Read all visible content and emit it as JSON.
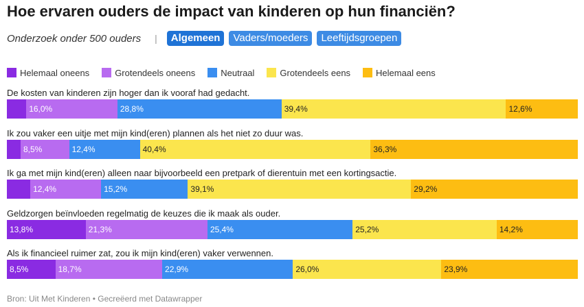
{
  "title": "Hoe ervaren ouders de impact van kinderen op hun financiën?",
  "subtitle": "Onderzoek onder 500 ouders",
  "separator": "|",
  "tabs": [
    {
      "label": "Algemeen",
      "active": true
    },
    {
      "label": "Vaders/moeders",
      "active": false
    },
    {
      "label": "Leeftijdsgroepen",
      "active": false
    }
  ],
  "footer": "Bron: Uit Met Kinderen • Gecreëerd met Datawrapper",
  "chart_data": {
    "type": "bar",
    "orientation": "horizontal",
    "stacked": true,
    "percentages": true,
    "xlim": [
      0,
      100
    ],
    "legend_position": "top",
    "categories": [
      "De kosten van kinderen zijn hoger dan ik vooraf had gedacht.",
      "Ik zou vaker een uitje met mijn kind(eren) plannen als het niet zo duur was.",
      "Ik ga met mijn kind(eren) alleen naar bijvoorbeeld een pretpark of dierentuin met een kortingsactie.",
      "Geldzorgen beïnvloeden regelmatig de keuzes die ik maak als ouder.",
      "Als ik financieel ruimer zat, zou ik mijn kind(eren) vaker verwennen."
    ],
    "series": [
      {
        "name": "Helemaal oneens",
        "color": "#8a2be2",
        "label_color": "#ffffff",
        "values": [
          3.4,
          2.4,
          4.1,
          13.8,
          8.5
        ],
        "labels": [
          "",
          "",
          "",
          "13,8%",
          "8,5%"
        ]
      },
      {
        "name": "Grotendeels oneens",
        "color": "#b86bf0",
        "label_color": "#ffffff",
        "values": [
          16.0,
          8.5,
          12.4,
          21.3,
          18.7
        ],
        "labels": [
          "16,0%",
          "8,5%",
          "12,4%",
          "21,3%",
          "18,7%"
        ]
      },
      {
        "name": "Neutraal",
        "color": "#3a8ef0",
        "label_color": "#ffffff",
        "values": [
          28.8,
          12.4,
          15.2,
          25.4,
          22.9
        ],
        "labels": [
          "28,8%",
          "12,4%",
          "15,2%",
          "25,4%",
          "22,9%"
        ]
      },
      {
        "name": "Grotendeels eens",
        "color": "#fbe54d",
        "label_color": "#222222",
        "values": [
          39.4,
          40.4,
          39.1,
          25.2,
          26.0
        ],
        "labels": [
          "39,4%",
          "40,4%",
          "39,1%",
          "25,2%",
          "26,0%"
        ]
      },
      {
        "name": "Helemaal eens",
        "color": "#fdbd12",
        "label_color": "#222222",
        "values": [
          12.6,
          36.3,
          29.2,
          14.2,
          23.9
        ],
        "labels": [
          "12,6%",
          "36,3%",
          "29,2%",
          "14,2%",
          "23,9%"
        ]
      }
    ]
  }
}
